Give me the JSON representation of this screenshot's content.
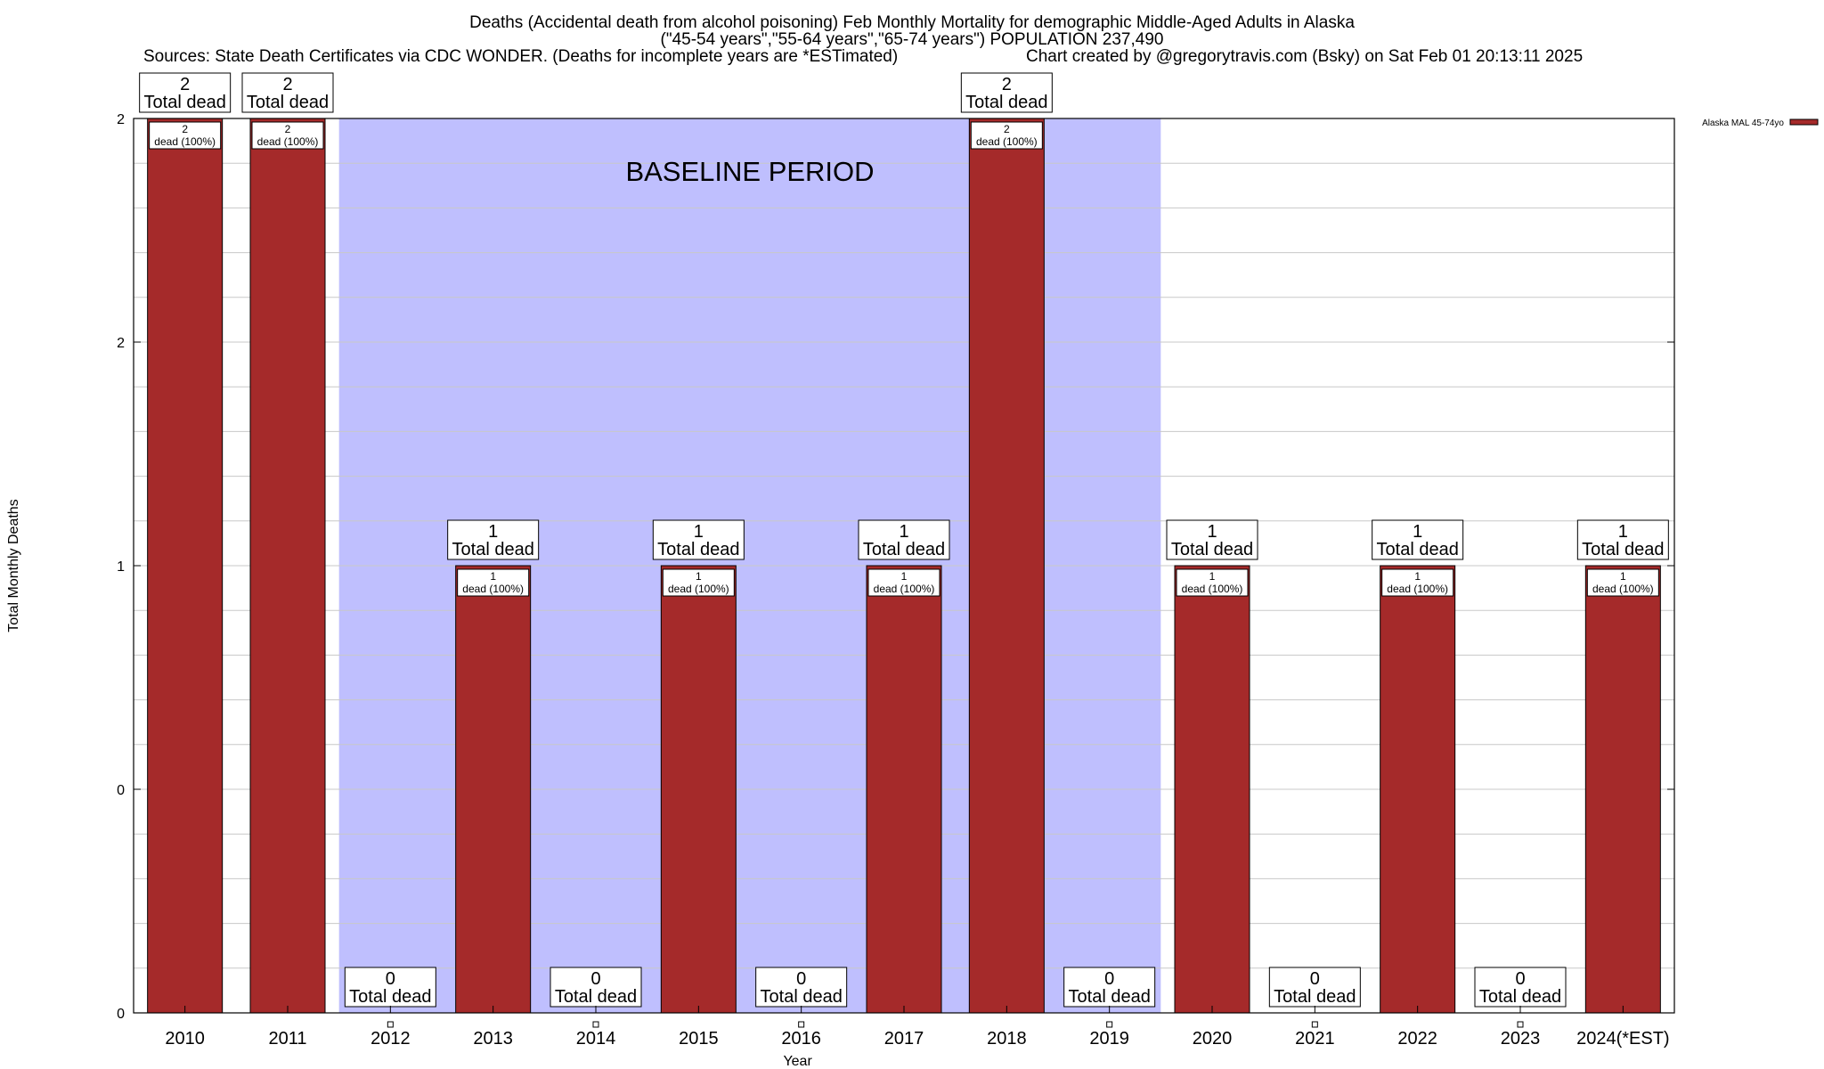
{
  "header": {
    "title": "Deaths (Accidental death from alcohol poisoning) Feb Monthly Mortality for demographic Middle-Aged Adults in Alaska",
    "subtitle": "(\"45-54 years\",\"55-64 years\",\"65-74 years\") POPULATION 237,490",
    "sources": "Sources: State Death Certificates via CDC WONDER. (Deaths for incomplete years are *ESTimated)",
    "credit": "Chart created by @gregorytravis.com (Bsky) on Sat Feb 01 20:13:11 2025"
  },
  "chart_data": {
    "type": "bar",
    "xlabel": "Year",
    "ylabel": "Total Monthly Deaths",
    "ylim": [
      0,
      2
    ],
    "y_tick_labels": [
      "0",
      "0",
      "1",
      "2",
      "2"
    ],
    "grid": true,
    "legend_position": "top-right",
    "baseline_label": "BASELINE PERIOD",
    "baseline_range": [
      "2012",
      "2019"
    ],
    "categories": [
      "2010",
      "2011",
      "2012",
      "2013",
      "2014",
      "2015",
      "2016",
      "2017",
      "2018",
      "2019",
      "2020",
      "2021",
      "2022",
      "2023",
      "2024(*EST)"
    ],
    "series": [
      {
        "name": "Alaska MAL 45-74yo",
        "color": "#a52a2a",
        "values": [
          2,
          2,
          0,
          1,
          0,
          1,
          0,
          1,
          2,
          0,
          1,
          0,
          1,
          0,
          1
        ]
      }
    ],
    "total_labels": [
      "2\nTotal dead",
      "2\nTotal dead",
      "0\nTotal dead",
      "1\nTotal dead",
      "0\nTotal dead",
      "1\nTotal dead",
      "0\nTotal dead",
      "1\nTotal dead",
      "2\nTotal dead",
      "0\nTotal dead",
      "1\nTotal dead",
      "0\nTotal dead",
      "1\nTotal dead",
      "0\nTotal dead",
      "1\nTotal dead"
    ],
    "inner_labels": [
      "2\ndead (100%)",
      "2\ndead (100%)",
      "",
      "1\ndead (100%)",
      "",
      "1\ndead (100%)",
      "",
      "1\ndead (100%)",
      "2\ndead (100%)",
      "",
      "1\ndead (100%)",
      "",
      "1\ndead (100%)",
      "",
      "1\ndead (100%)"
    ],
    "colors": {
      "bar": "#a52a2a",
      "baseline_fill": "#bfbffe",
      "grid": "#c8c8c8"
    }
  }
}
